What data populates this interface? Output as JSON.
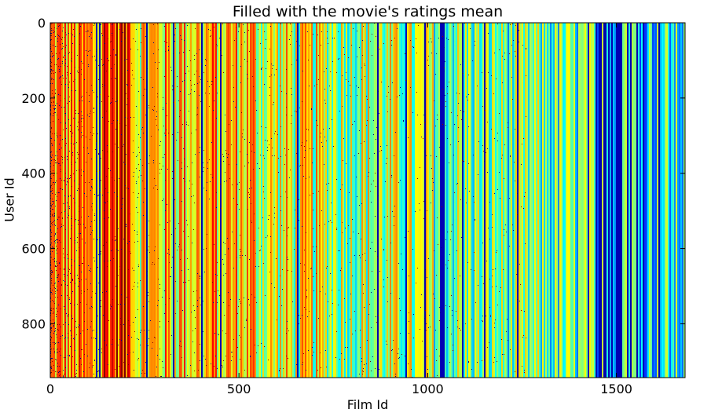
{
  "chart_data": {
    "type": "heatmap",
    "title": "Filled with the movie's ratings mean",
    "xlabel": "Film Id",
    "ylabel": "User Id",
    "xlim": [
      0,
      1682
    ],
    "ylim": [
      943,
      0
    ],
    "x_ticks": [
      0,
      500,
      1000,
      1500
    ],
    "x_tick_labels": [
      "0",
      "500",
      "1000",
      "1500"
    ],
    "y_ticks": [
      0,
      200,
      400,
      600,
      800
    ],
    "y_tick_labels": [
      "0",
      "200",
      "400",
      "600",
      "800"
    ],
    "colormap": "jet",
    "grid": false,
    "legend": "none",
    "colors": {
      "jet_low": "#00007f",
      "jet_mid": "#7fff7f",
      "jet_high": "#7f0000"
    }
  }
}
